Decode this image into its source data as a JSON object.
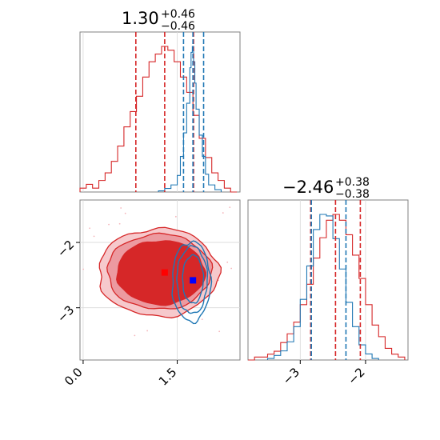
{
  "chart_data": [
    {
      "type": "histogram",
      "panel": "marginal-x",
      "title_value": "1.30",
      "title_plus": "+0.46",
      "title_minus": "−0.46",
      "xlim": [
        -0.05,
        2.5
      ],
      "grid": true,
      "red_lines": [
        0.84,
        1.3,
        1.76
      ],
      "blue_lines": [
        1.6,
        1.75,
        1.92
      ],
      "series": [
        {
          "color": "#d62728",
          "bins": [
            -0.05,
            0.05,
            0.15,
            0.25,
            0.35,
            0.45,
            0.55,
            0.65,
            0.75,
            0.85,
            0.95,
            1.05,
            1.15,
            1.25,
            1.35,
            1.45,
            1.55,
            1.65,
            1.75,
            1.85,
            1.95,
            2.05,
            2.15,
            2.25,
            2.35,
            2.45
          ],
          "counts": [
            1,
            2,
            1,
            3,
            5,
            8,
            12,
            17,
            21,
            25,
            30,
            34,
            36,
            38,
            37,
            34,
            30,
            26,
            20,
            14,
            9,
            5,
            3,
            1,
            0
          ]
        },
        {
          "color": "#1f77b4",
          "bins": [
            1.2,
            1.3,
            1.4,
            1.5,
            1.55,
            1.6,
            1.65,
            1.7,
            1.72,
            1.74,
            1.76,
            1.78,
            1.8,
            1.85,
            1.9,
            1.95,
            2.0,
            2.1,
            2.2
          ],
          "counts": [
            1,
            3,
            6,
            14,
            30,
            50,
            75,
            105,
            118,
            123,
            110,
            92,
            70,
            48,
            30,
            15,
            6,
            2
          ]
        }
      ]
    },
    {
      "type": "histogram",
      "panel": "marginal-y",
      "title_value": "−2.46",
      "title_plus": "+0.38",
      "title_minus": "−0.38",
      "xlim": [
        -3.8,
        -1.35
      ],
      "xticks": [
        "−3",
        "−2"
      ],
      "grid": true,
      "red_lines": [
        -2.84,
        -2.46,
        -2.08
      ],
      "blue_lines": [
        -2.83,
        -2.3
      ],
      "series": [
        {
          "color": "#d62728",
          "bins": [
            -3.8,
            -3.7,
            -3.6,
            -3.5,
            -3.4,
            -3.3,
            -3.2,
            -3.1,
            -3.0,
            -2.9,
            -2.8,
            -2.7,
            -2.6,
            -2.5,
            -2.4,
            -2.3,
            -2.2,
            -2.1,
            -2.0,
            -1.9,
            -1.8,
            -1.7,
            -1.6,
            -1.5,
            -1.4
          ],
          "counts": [
            0,
            1,
            1,
            2,
            3,
            6,
            9,
            13,
            19,
            26,
            35,
            42,
            48,
            50,
            48,
            43,
            36,
            28,
            19,
            12,
            8,
            4,
            2,
            1
          ]
        },
        {
          "color": "#1f77b4",
          "bins": [
            -3.5,
            -3.4,
            -3.3,
            -3.2,
            -3.1,
            -3.0,
            -2.9,
            -2.8,
            -2.7,
            -2.6,
            -2.5,
            -2.4,
            -2.3,
            -2.2,
            -2.1,
            -2.0,
            -1.9,
            -1.8
          ],
          "counts": [
            1,
            3,
            6,
            12,
            22,
            40,
            62,
            86,
            96,
            95,
            80,
            60,
            38,
            22,
            10,
            4,
            1
          ]
        }
      ]
    },
    {
      "type": "contour",
      "panel": "joint",
      "xlim": [
        -0.05,
        2.5
      ],
      "ylim": [
        -3.8,
        -1.35
      ],
      "xticks": [
        "0.0",
        "1.5"
      ],
      "yticks": [
        "−2",
        "−3"
      ],
      "grid": true,
      "series": [
        {
          "color": "#d62728",
          "center": [
            1.2,
            -2.46
          ],
          "marker": [
            1.3,
            -2.46
          ]
        },
        {
          "color": "#1f77b4",
          "center": [
            1.75,
            -2.6
          ],
          "marker": [
            1.75,
            -2.58
          ]
        }
      ]
    }
  ]
}
